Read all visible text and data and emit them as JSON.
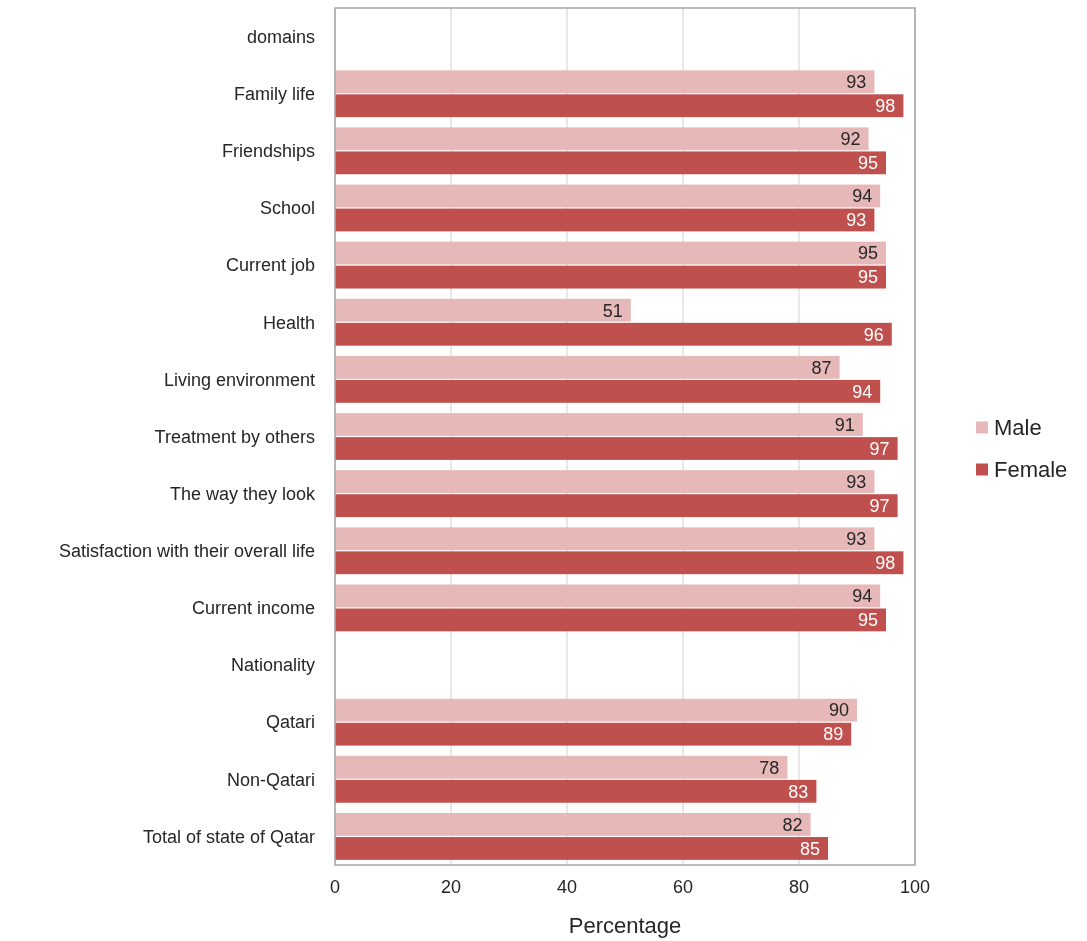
{
  "chart_data": {
    "type": "bar",
    "orientation": "horizontal",
    "xlabel": "Percentage",
    "categories": [
      "domains",
      "Family life",
      "Friendships",
      "School",
      "Current job",
      "Health",
      "Living environment",
      "Treatment by others",
      "The way they look",
      "Satisfaction with their overall life",
      "Current income",
      "Nationality",
      "Qatari",
      "Non-Qatari",
      "Total of state of Qatar"
    ],
    "series": [
      {
        "name": "Male",
        "color": "#e6b9b8",
        "values": [
          null,
          93,
          92,
          94,
          95,
          51,
          87,
          91,
          93,
          93,
          94,
          null,
          90,
          78,
          82
        ]
      },
      {
        "name": "Female",
        "color": "#c0504d",
        "values": [
          null,
          98,
          95,
          93,
          95,
          96,
          94,
          97,
          97,
          98,
          95,
          null,
          89,
          83,
          85
        ]
      }
    ],
    "xlim": [
      0,
      100
    ],
    "xticks": [
      0,
      20,
      40,
      60,
      80,
      100
    ],
    "grid": "x",
    "legend": "right",
    "data_labels": true
  }
}
